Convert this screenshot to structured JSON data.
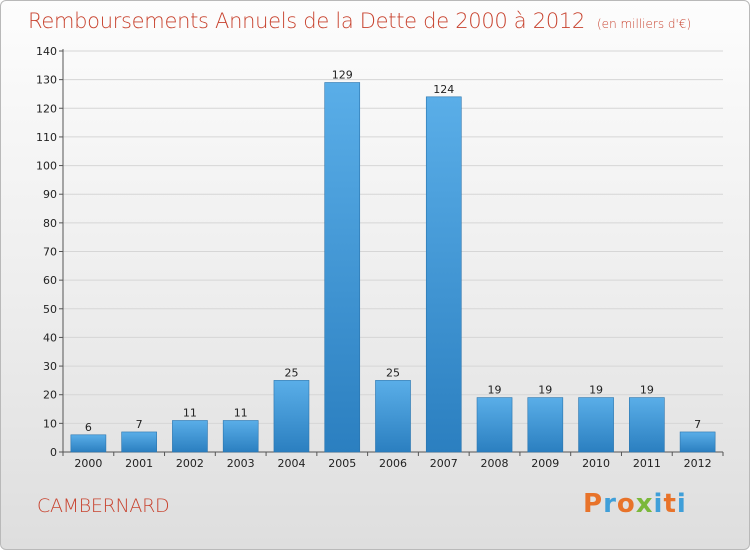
{
  "header": {
    "title": "Remboursements Annuels de la Dette de 2000 à 2012",
    "unit": "(en milliers d'€)"
  },
  "footer": {
    "commune": "CAMBERNARD",
    "logo_letters": [
      "P",
      "r",
      "o",
      "x",
      "i",
      "t",
      "i"
    ]
  },
  "colors": {
    "title": "#c8432f",
    "bar_light": "#5aaee8",
    "bar_dark": "#2b7fc0",
    "grid": "#d6d6d6",
    "logo": [
      "#e8732a",
      "#3f9fd9",
      "#e8732a",
      "#7bb83b",
      "#3f9fd9",
      "#e8732a",
      "#3f9fd9"
    ]
  },
  "chart_data": {
    "type": "bar",
    "title": "Remboursements Annuels de la Dette de 2000 à 2012",
    "xlabel": "",
    "ylabel": "",
    "categories": [
      "2000",
      "2001",
      "2002",
      "2003",
      "2004",
      "2005",
      "2006",
      "2007",
      "2008",
      "2009",
      "2010",
      "2011",
      "2012"
    ],
    "values": [
      6,
      7,
      11,
      11,
      25,
      129,
      25,
      124,
      19,
      19,
      19,
      19,
      7
    ],
    "ylim": [
      0,
      140
    ],
    "yticks": [
      0,
      10,
      20,
      30,
      40,
      50,
      60,
      70,
      80,
      90,
      100,
      110,
      120,
      130,
      140
    ],
    "grid": true,
    "legend": "none"
  }
}
